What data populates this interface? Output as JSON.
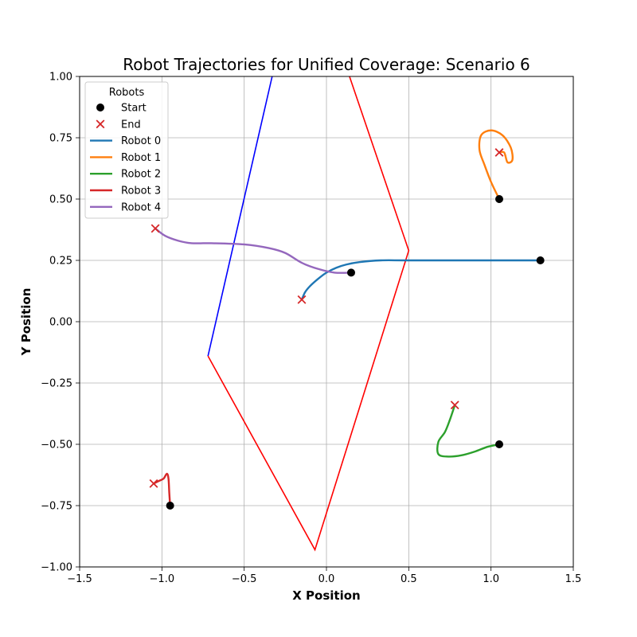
{
  "chart_data": {
    "type": "line",
    "title": "Robot Trajectories for Unified Coverage: Scenario 6",
    "xlabel": "X Position",
    "ylabel": "Y Position",
    "xlim": [
      -1.5,
      1.5
    ],
    "ylim": [
      -1.0,
      1.0
    ],
    "xticks": [
      -1.5,
      -1.0,
      -0.5,
      0.0,
      0.5,
      1.0,
      1.5
    ],
    "xtick_labels": [
      "−1.5",
      "−1.0",
      "−0.5",
      "0.0",
      "0.5",
      "1.0",
      "1.5"
    ],
    "yticks": [
      -1.0,
      -0.75,
      -0.5,
      -0.25,
      0.0,
      0.25,
      0.5,
      0.75,
      1.0
    ],
    "ytick_labels": [
      "−1.00",
      "−0.75",
      "−0.50",
      "−0.25",
      "0.00",
      "0.25",
      "0.50",
      "0.75",
      "1.00"
    ],
    "grid": true,
    "legend": {
      "title": "Robots",
      "position": "top-left",
      "entries": [
        "Start",
        "End",
        "Robot 0",
        "Robot 1",
        "Robot 2",
        "Robot 3",
        "Robot 4"
      ]
    },
    "marker_colors": {
      "start": "#000000",
      "end": "#d62728"
    },
    "boundaries": [
      {
        "color": "#0000ff",
        "points": [
          [
            -0.72,
            -0.14
          ],
          [
            -0.33,
            1.0
          ]
        ]
      },
      {
        "color": "#ff0000",
        "points": [
          [
            0.14,
            1.0
          ],
          [
            0.5,
            0.29
          ],
          [
            -0.07,
            -0.93
          ],
          [
            -0.72,
            -0.14
          ]
        ]
      }
    ],
    "series": [
      {
        "name": "Robot 0",
        "color": "#1f77b4",
        "start": [
          1.3,
          0.25
        ],
        "end": [
          -0.15,
          0.09
        ],
        "points": [
          [
            1.3,
            0.25
          ],
          [
            0.9,
            0.25
          ],
          [
            0.5,
            0.25
          ],
          [
            0.33,
            0.25
          ],
          [
            0.2,
            0.243
          ],
          [
            0.12,
            0.233
          ],
          [
            0.06,
            0.22
          ],
          [
            0.0,
            0.2
          ],
          [
            -0.05,
            0.175
          ],
          [
            -0.1,
            0.145
          ],
          [
            -0.13,
            0.12
          ],
          [
            -0.15,
            0.09
          ]
        ]
      },
      {
        "name": "Robot 1",
        "color": "#ff7f0e",
        "start": [
          1.05,
          0.5
        ],
        "end": [
          1.05,
          0.69
        ],
        "points": [
          [
            1.05,
            0.5
          ],
          [
            1.0,
            0.57
          ],
          [
            0.96,
            0.64
          ],
          [
            0.93,
            0.7
          ],
          [
            0.94,
            0.76
          ],
          [
            1.0,
            0.78
          ],
          [
            1.07,
            0.76
          ],
          [
            1.12,
            0.71
          ],
          [
            1.13,
            0.66
          ],
          [
            1.1,
            0.65
          ],
          [
            1.08,
            0.69
          ],
          [
            1.05,
            0.69
          ]
        ]
      },
      {
        "name": "Robot 2",
        "color": "#2ca02c",
        "start": [
          1.05,
          -0.5
        ],
        "end": [
          0.78,
          -0.34
        ],
        "points": [
          [
            1.05,
            -0.5
          ],
          [
            0.98,
            -0.51
          ],
          [
            0.9,
            -0.53
          ],
          [
            0.82,
            -0.545
          ],
          [
            0.74,
            -0.55
          ],
          [
            0.68,
            -0.54
          ],
          [
            0.68,
            -0.49
          ],
          [
            0.72,
            -0.45
          ],
          [
            0.75,
            -0.4
          ],
          [
            0.78,
            -0.34
          ]
        ]
      },
      {
        "name": "Robot 3",
        "color": "#d62728",
        "start": [
          -0.95,
          -0.75
        ],
        "end": [
          -1.05,
          -0.66
        ],
        "points": [
          [
            -0.95,
            -0.75
          ],
          [
            -0.955,
            -0.7
          ],
          [
            -0.96,
            -0.64
          ],
          [
            -0.97,
            -0.62
          ],
          [
            -0.99,
            -0.64
          ],
          [
            -1.02,
            -0.65
          ],
          [
            -1.05,
            -0.66
          ]
        ]
      },
      {
        "name": "Robot 4",
        "color": "#9467bd",
        "start": [
          0.15,
          0.2
        ],
        "end": [
          -1.04,
          0.38
        ],
        "points": [
          [
            0.15,
            0.2
          ],
          [
            0.05,
            0.2
          ],
          [
            -0.05,
            0.215
          ],
          [
            -0.15,
            0.24
          ],
          [
            -0.25,
            0.28
          ],
          [
            -0.35,
            0.3
          ],
          [
            -0.5,
            0.315
          ],
          [
            -0.7,
            0.32
          ],
          [
            -0.82,
            0.32
          ],
          [
            -0.9,
            0.33
          ],
          [
            -0.98,
            0.35
          ],
          [
            -1.04,
            0.38
          ]
        ]
      }
    ]
  }
}
